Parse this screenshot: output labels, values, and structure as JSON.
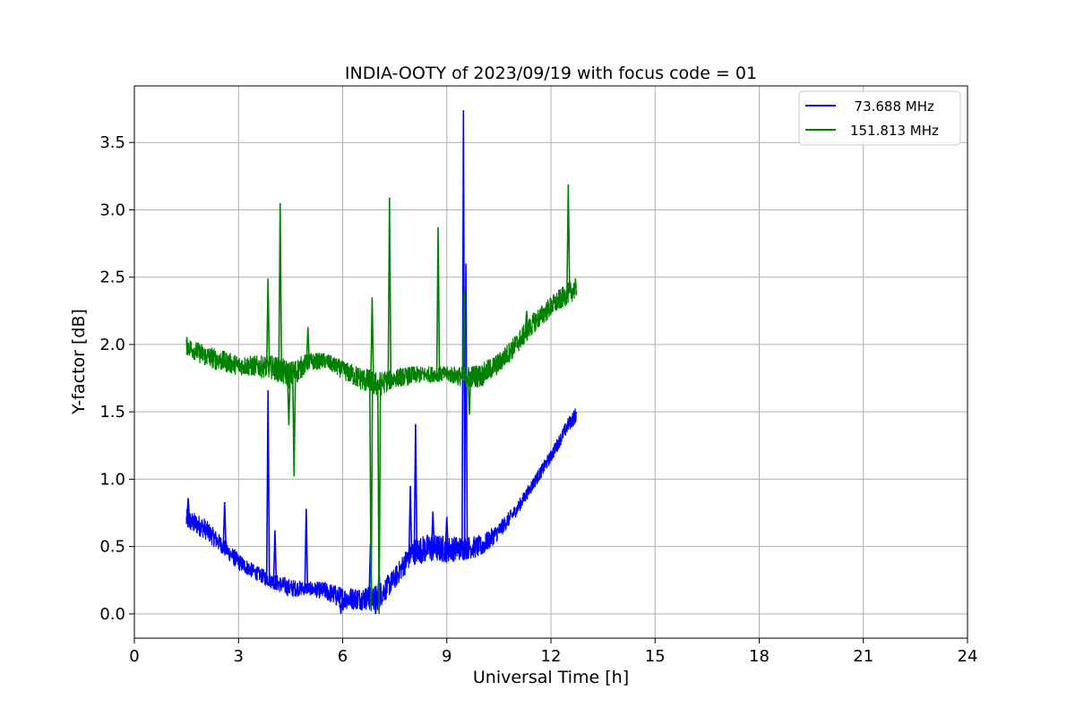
{
  "chart_data": {
    "type": "line",
    "title": "INDIA-OOTY of 2023/09/19 with focus code = 01",
    "xlabel": "Universal Time [h]",
    "ylabel": "Y-factor [dB]",
    "xlim": [
      0,
      24
    ],
    "ylim": [
      -0.18,
      3.92
    ],
    "xticks": [
      0,
      3,
      6,
      9,
      12,
      15,
      18,
      21,
      24
    ],
    "xtick_labels": [
      "0",
      "3",
      "6",
      "9",
      "12",
      "15",
      "18",
      "21",
      "24"
    ],
    "yticks": [
      0.0,
      0.5,
      1.0,
      1.5,
      2.0,
      2.5,
      3.0,
      3.5
    ],
    "ytick_labels": [
      "0.0",
      "0.5",
      "1.0",
      "1.5",
      "2.0",
      "2.5",
      "3.0",
      "3.5"
    ],
    "grid": true,
    "legend_position": "top-right",
    "series": [
      {
        "name": "  73.688 MHz",
        "color": "#0000ff",
        "x": [
          1.5,
          2.0,
          2.5,
          3.0,
          3.5,
          4.0,
          4.5,
          5.0,
          5.5,
          6.0,
          6.5,
          7.0,
          7.5,
          8.0,
          8.5,
          9.0,
          9.5,
          10.0,
          10.5,
          11.0,
          11.5,
          12.0,
          12.5,
          12.75
        ],
        "low": [
          0.62,
          0.56,
          0.45,
          0.32,
          0.25,
          0.18,
          0.12,
          0.14,
          0.1,
          0.03,
          0.03,
          0.02,
          0.18,
          0.36,
          0.38,
          0.38,
          0.4,
          0.42,
          0.55,
          0.72,
          0.92,
          1.12,
          1.35,
          1.42
        ],
        "high": [
          0.78,
          0.72,
          0.58,
          0.45,
          0.36,
          0.3,
          0.26,
          0.24,
          0.24,
          0.2,
          0.2,
          0.22,
          0.34,
          0.56,
          0.6,
          0.58,
          0.58,
          0.58,
          0.68,
          0.82,
          1.02,
          1.22,
          1.46,
          1.55
        ],
        "spikes": [
          {
            "x": 1.55,
            "y": 0.86
          },
          {
            "x": 2.6,
            "y": 0.83
          },
          {
            "x": 3.85,
            "y": 1.66
          },
          {
            "x": 4.05,
            "y": 0.62
          },
          {
            "x": 4.95,
            "y": 0.78
          },
          {
            "x": 6.8,
            "y": 0.52
          },
          {
            "x": 7.05,
            "y": 0.3
          },
          {
            "x": 7.95,
            "y": 0.95
          },
          {
            "x": 8.1,
            "y": 1.41
          },
          {
            "x": 8.6,
            "y": 0.76
          },
          {
            "x": 9.0,
            "y": 0.72
          },
          {
            "x": 9.48,
            "y": 3.74
          },
          {
            "x": 9.55,
            "y": 2.6
          }
        ],
        "dips": [
          {
            "x": 5.95,
            "y": 0.0
          },
          {
            "x": 6.95,
            "y": 0.0
          }
        ]
      },
      {
        "name": "151.813 MHz",
        "color": "#008000",
        "x": [
          1.5,
          2.0,
          2.5,
          3.0,
          3.5,
          4.0,
          4.5,
          5.0,
          5.5,
          6.0,
          6.5,
          7.0,
          7.5,
          8.0,
          8.5,
          9.0,
          9.5,
          10.0,
          10.5,
          11.0,
          11.5,
          12.0,
          12.5,
          12.75
        ],
        "low": [
          1.92,
          1.84,
          1.8,
          1.77,
          1.76,
          1.74,
          1.66,
          1.8,
          1.82,
          1.74,
          1.66,
          1.6,
          1.68,
          1.7,
          1.72,
          1.72,
          1.68,
          1.68,
          1.78,
          1.92,
          2.08,
          2.2,
          2.3,
          2.34
        ],
        "high": [
          2.06,
          2.0,
          1.96,
          1.92,
          1.92,
          1.92,
          1.88,
          1.94,
          1.94,
          1.88,
          1.84,
          1.8,
          1.82,
          1.84,
          1.84,
          1.84,
          1.84,
          1.86,
          1.94,
          2.08,
          2.24,
          2.36,
          2.46,
          2.5
        ],
        "spikes": [
          {
            "x": 3.85,
            "y": 2.49
          },
          {
            "x": 4.2,
            "y": 3.05
          },
          {
            "x": 5.0,
            "y": 2.13
          },
          {
            "x": 6.85,
            "y": 2.35
          },
          {
            "x": 7.35,
            "y": 3.09
          },
          {
            "x": 8.75,
            "y": 2.87
          },
          {
            "x": 9.5,
            "y": 2.4
          },
          {
            "x": 11.3,
            "y": 2.25
          },
          {
            "x": 12.5,
            "y": 3.19
          }
        ],
        "dips": [
          {
            "x": 4.45,
            "y": 1.4
          },
          {
            "x": 4.6,
            "y": 1.02
          },
          {
            "x": 6.82,
            "y": 0.02
          },
          {
            "x": 7.05,
            "y": 0.0
          },
          {
            "x": 9.65,
            "y": 1.48
          }
        ]
      }
    ]
  }
}
